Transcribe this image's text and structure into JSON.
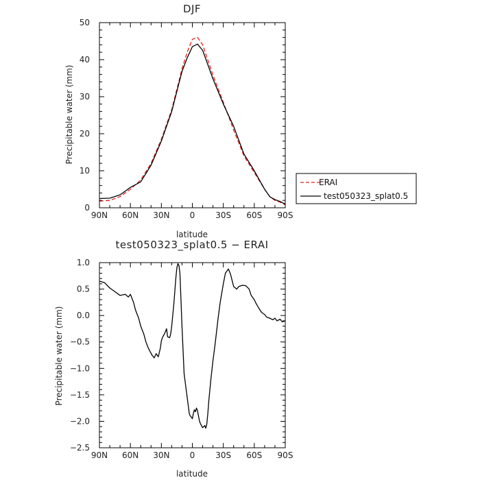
{
  "chart_data": [
    {
      "type": "line",
      "title": "DJF",
      "xlabel": "latitude",
      "ylabel": "Precipitable water (mm)",
      "xlim": [
        90,
        -90
      ],
      "ylim": [
        0,
        50
      ],
      "x_ticks": [
        90,
        60,
        30,
        0,
        -30,
        -60,
        -90
      ],
      "x_tick_labels": [
        "90N",
        "60N",
        "30N",
        "0",
        "30S",
        "60S",
        "90S"
      ],
      "y_ticks": [
        0,
        10,
        20,
        30,
        40,
        50
      ],
      "y_tick_labels": [
        "0",
        "10",
        "20",
        "30",
        "40",
        "50"
      ],
      "legend_position": "right",
      "series": [
        {
          "name": "ERAI",
          "color": "#e0201b",
          "style": "dashed",
          "x": [
            90,
            80,
            70,
            60,
            50,
            40,
            30,
            20,
            10,
            5,
            0,
            -5,
            -10,
            -20,
            -30,
            -40,
            -50,
            -60,
            -70,
            -75,
            -80,
            -85,
            -90
          ],
          "y": [
            1.8,
            2.0,
            3.0,
            5.0,
            7.5,
            12.0,
            18.5,
            26.5,
            37.5,
            42.0,
            45.5,
            46.0,
            44.0,
            35.8,
            28.5,
            21.0,
            14.0,
            9.5,
            5.0,
            3.0,
            2.0,
            1.5,
            0.8
          ]
        },
        {
          "name": "test050323_splat0.5",
          "color": "#000000",
          "style": "solid",
          "x": [
            90,
            80,
            70,
            60,
            50,
            40,
            30,
            20,
            10,
            5,
            0,
            -5,
            -10,
            -20,
            -30,
            -40,
            -50,
            -60,
            -70,
            -75,
            -80,
            -85,
            -90
          ],
          "y": [
            2.5,
            2.6,
            3.5,
            5.5,
            7.0,
            11.5,
            18.0,
            26.0,
            36.8,
            40.5,
            43.5,
            44.2,
            42.5,
            34.8,
            28.0,
            22.0,
            14.5,
            10.0,
            5.0,
            3.0,
            2.2,
            1.7,
            1.0
          ]
        }
      ]
    },
    {
      "type": "line",
      "title": "test050323_splat0.5 − ERAI",
      "xlabel": "latitude",
      "ylabel": "Precipitable water (mm)",
      "xlim": [
        90,
        -90
      ],
      "ylim": [
        -2.5,
        1.0
      ],
      "x_ticks": [
        90,
        60,
        30,
        0,
        -30,
        -60,
        -90
      ],
      "x_tick_labels": [
        "90N",
        "60N",
        "30N",
        "0",
        "30S",
        "60S",
        "90S"
      ],
      "y_ticks": [
        1.0,
        0.5,
        0.0,
        -0.5,
        -1.0,
        -1.5,
        -2.0,
        -2.5
      ],
      "y_tick_labels": [
        "1.0",
        "0.5",
        "0.0",
        "−0.5",
        "−1.0",
        "−1.5",
        "−2.0",
        "−2.5"
      ],
      "series": [
        {
          "color": "#000000",
          "style": "solid",
          "x": [
            90,
            85,
            80,
            75,
            70,
            65,
            62,
            60,
            57,
            55,
            52,
            50,
            47,
            45,
            43,
            41,
            39,
            37,
            35,
            33,
            31,
            30,
            29,
            28,
            27,
            26,
            25,
            24,
            22,
            21,
            20,
            19,
            18,
            17,
            16,
            15,
            14,
            13,
            12,
            10,
            8,
            6,
            5,
            4,
            3,
            2,
            1,
            0,
            -1,
            -2,
            -3,
            -4,
            -5,
            -6,
            -7,
            -8,
            -10,
            -12,
            -13,
            -14,
            -15,
            -16,
            -18,
            -20,
            -22,
            -25,
            -27,
            -30,
            -32,
            -35,
            -37,
            -40,
            -43,
            -45,
            -48,
            -50,
            -52,
            -55,
            -57,
            -60,
            -62,
            -65,
            -67,
            -70,
            -72,
            -75,
            -78,
            -80,
            -82,
            -85,
            -87,
            -90
          ],
          "y": [
            0.65,
            0.62,
            0.52,
            0.45,
            0.38,
            0.4,
            0.35,
            0.4,
            0.25,
            0.1,
            -0.05,
            -0.2,
            -0.35,
            -0.5,
            -0.6,
            -0.68,
            -0.75,
            -0.8,
            -0.72,
            -0.78,
            -0.62,
            -0.48,
            -0.42,
            -0.38,
            -0.35,
            -0.3,
            -0.25,
            -0.4,
            -0.42,
            -0.35,
            -0.2,
            0.0,
            0.2,
            0.45,
            0.7,
            0.9,
            0.98,
            0.95,
            0.8,
            -0.2,
            -1.1,
            -1.4,
            -1.55,
            -1.7,
            -1.85,
            -1.9,
            -1.92,
            -1.95,
            -1.85,
            -1.78,
            -1.82,
            -1.75,
            -1.8,
            -1.9,
            -2.0,
            -2.05,
            -2.12,
            -2.08,
            -2.13,
            -2.05,
            -1.85,
            -1.6,
            -1.2,
            -0.85,
            -0.55,
            -0.05,
            0.25,
            0.6,
            0.8,
            0.88,
            0.78,
            0.55,
            0.5,
            0.55,
            0.57,
            0.57,
            0.56,
            0.5,
            0.38,
            0.3,
            0.22,
            0.12,
            0.06,
            0.02,
            -0.03,
            -0.05,
            -0.08,
            -0.05,
            -0.1,
            -0.07,
            -0.12,
            -0.1
          ]
        }
      ]
    }
  ]
}
